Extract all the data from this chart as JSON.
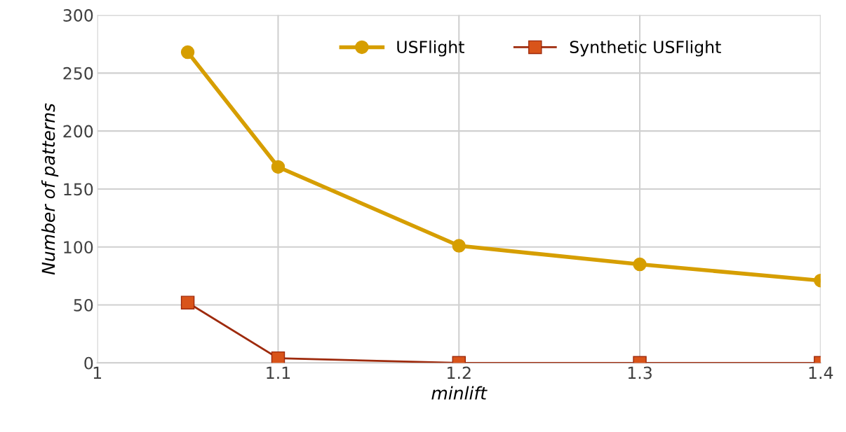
{
  "chart_data": {
    "type": "line",
    "xlabel": "minlift",
    "ylabel": "Number of patterns",
    "x": [
      1.05,
      1.1,
      1.2,
      1.3,
      1.4
    ],
    "series": [
      {
        "name": "USFlight",
        "color": "#d69e00",
        "marker": "circle",
        "values": [
          268,
          169,
          101,
          85,
          71
        ]
      },
      {
        "name": "Synthetic USFlight",
        "color": "#9e2a0c",
        "marker": "square",
        "values": [
          52,
          4,
          0,
          0,
          0
        ]
      }
    ],
    "xlim": [
      1,
      1.4
    ],
    "xticks": [
      1,
      1.1,
      1.2,
      1.3,
      1.4
    ],
    "ylim": [
      0,
      300
    ],
    "yticks": [
      0,
      50,
      100,
      150,
      200,
      250,
      300
    ],
    "grid": true,
    "legend": "top right",
    "line_style": "solid"
  }
}
